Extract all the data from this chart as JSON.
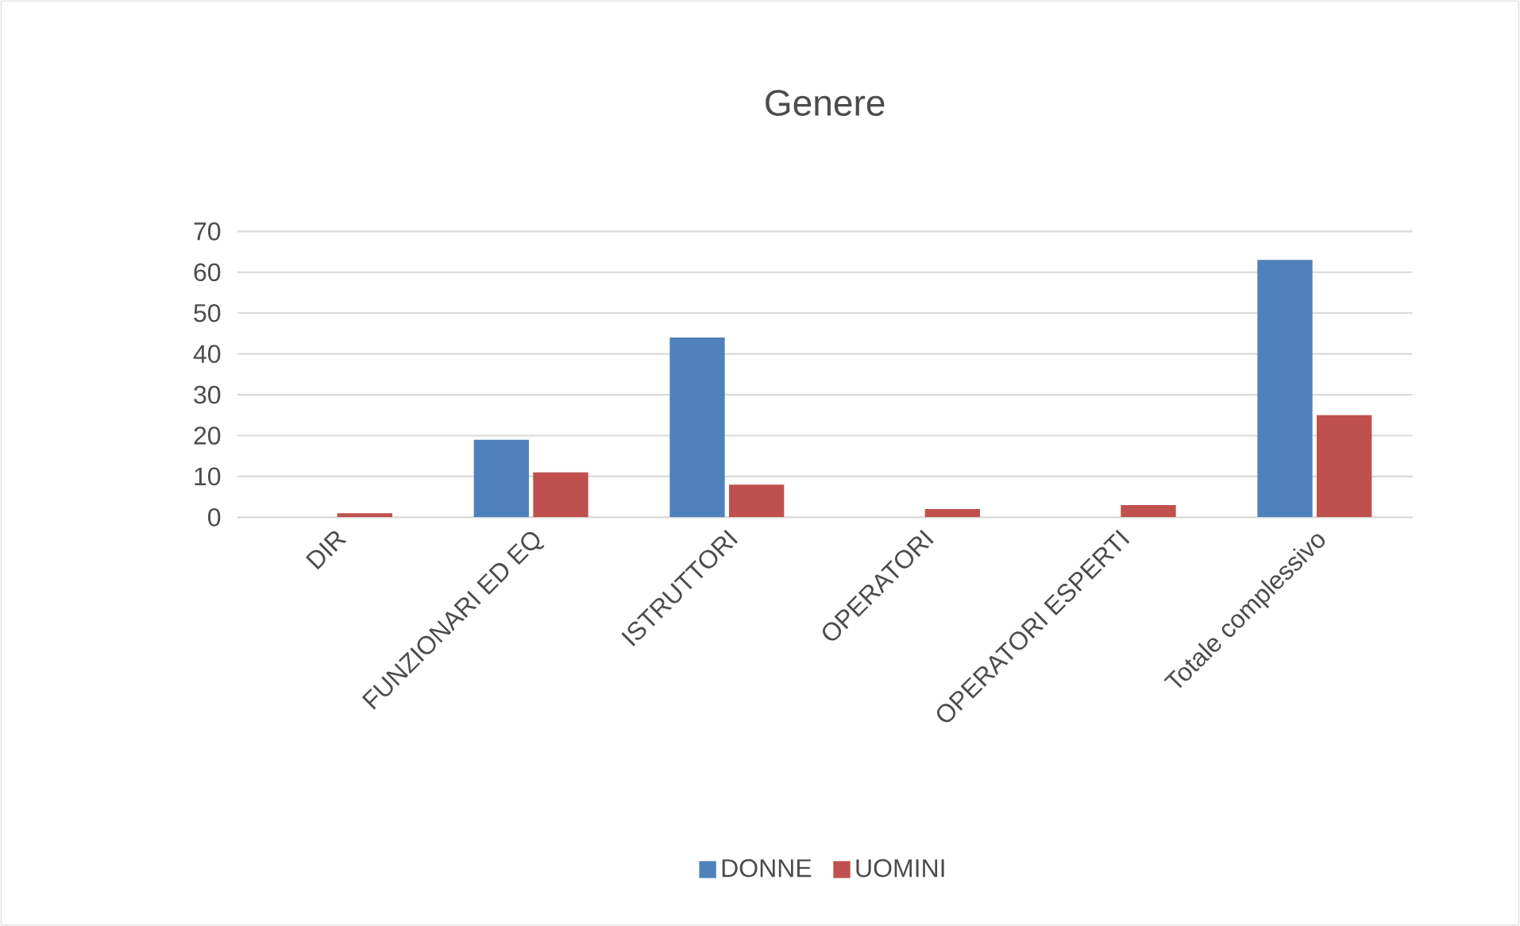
{
  "chart_data": {
    "type": "bar",
    "title": "Genere",
    "categories": [
      "DIR",
      "FUNZIONARI ED EQ",
      "ISTRUTTORI",
      "OPERATORI",
      "OPERATORI ESPERTI",
      "Totale complessivo"
    ],
    "series": [
      {
        "name": "DONNE",
        "color": "#4f81bd",
        "values": [
          null,
          19,
          44,
          null,
          null,
          63
        ]
      },
      {
        "name": "UOMINI",
        "color": "#c0504d",
        "values": [
          1,
          11,
          8,
          2,
          3,
          25
        ]
      }
    ],
    "ylim": [
      0,
      70
    ],
    "yticks": [
      0,
      10,
      20,
      30,
      40,
      50,
      60,
      70
    ],
    "grid": "y",
    "legend": "bottom"
  }
}
